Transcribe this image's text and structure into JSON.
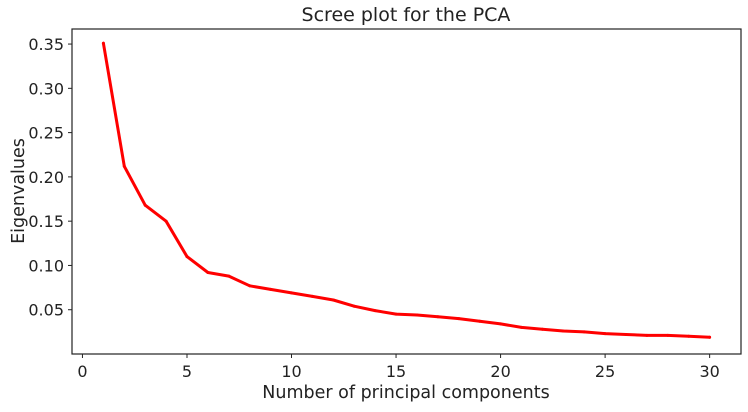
{
  "chart_data": {
    "type": "line",
    "title": "Scree plot for the PCA",
    "xlabel": "Number of principal components",
    "ylabel": "Eigenvalues",
    "xlim": [
      -0.5,
      31.5
    ],
    "ylim": [
      0.0,
      0.367
    ],
    "x_ticks": [
      0,
      5,
      10,
      15,
      20,
      25,
      30
    ],
    "x_tick_labels": [
      "0",
      "5",
      "10",
      "15",
      "20",
      "25",
      "30"
    ],
    "y_ticks": [
      0.05,
      0.1,
      0.15,
      0.2,
      0.25,
      0.3,
      0.35
    ],
    "y_tick_labels": [
      "0.05",
      "0.10",
      "0.15",
      "0.20",
      "0.25",
      "0.30",
      "0.35"
    ],
    "grid": false,
    "series": [
      {
        "color": "#ff0000",
        "x": [
          1,
          2,
          3,
          4,
          5,
          6,
          7,
          8,
          9,
          10,
          11,
          12,
          13,
          14,
          15,
          16,
          17,
          18,
          19,
          20,
          21,
          22,
          23,
          24,
          25,
          26,
          27,
          28,
          29,
          30
        ],
        "y": [
          0.351,
          0.212,
          0.168,
          0.15,
          0.11,
          0.092,
          0.088,
          0.077,
          0.073,
          0.069,
          0.065,
          0.061,
          0.054,
          0.049,
          0.045,
          0.044,
          0.042,
          0.04,
          0.037,
          0.034,
          0.03,
          0.028,
          0.026,
          0.025,
          0.023,
          0.022,
          0.021,
          0.021,
          0.02,
          0.019
        ]
      }
    ]
  }
}
